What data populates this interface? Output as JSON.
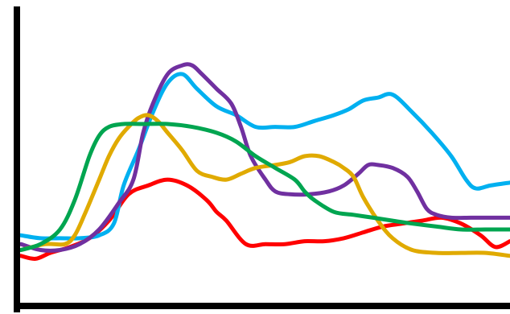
{
  "chart_data": {
    "type": "line",
    "title": "",
    "xlabel": "",
    "ylabel": "",
    "xlim": [
      0,
      100
    ],
    "ylim": [
      0,
      100
    ],
    "grid": false,
    "legend": "none",
    "axis_color": "#000000",
    "series": [
      {
        "color": "#ff0000",
        "x": [
          0,
          3,
          6,
          10,
          14,
          18,
          22,
          26,
          30,
          34,
          38,
          40,
          42,
          46,
          50,
          54,
          58,
          62,
          66,
          70,
          74,
          78,
          82,
          86,
          90,
          94,
          97,
          100
        ],
        "y": [
          16,
          15,
          17,
          19,
          22,
          28,
          37,
          40,
          42,
          40,
          35,
          31,
          28,
          20,
          20,
          20,
          21,
          21,
          22,
          24,
          26,
          27,
          28,
          29,
          27,
          23,
          19,
          21
        ]
      },
      {
        "color": "#00b0f0",
        "x": [
          0,
          4,
          8,
          12,
          16,
          19,
          21,
          24,
          27,
          30,
          33,
          36,
          40,
          44,
          48,
          52,
          56,
          60,
          64,
          67,
          70,
          73,
          76,
          80,
          84,
          88,
          91,
          93,
          96,
          100
        ],
        "y": [
          23,
          22,
          22,
          22,
          23,
          27,
          40,
          52,
          65,
          75,
          78,
          73,
          67,
          64,
          60,
          60,
          60,
          62,
          64,
          66,
          69,
          70,
          71,
          65,
          58,
          50,
          42,
          39,
          40,
          41
        ]
      },
      {
        "color": "#7030a0",
        "x": [
          0,
          4,
          8,
          12,
          16,
          20,
          23,
          25,
          27,
          30,
          33,
          35,
          37,
          40,
          43,
          45,
          47,
          50,
          52,
          55,
          59,
          63,
          66,
          69,
          71,
          73,
          76,
          79,
          81,
          83,
          85,
          88,
          92,
          96,
          100
        ],
        "y": [
          20,
          18,
          18,
          20,
          25,
          34,
          42,
          58,
          68,
          78,
          81,
          81,
          78,
          73,
          68,
          60,
          50,
          42,
          38,
          37,
          37,
          38,
          40,
          44,
          47,
          47,
          46,
          43,
          38,
          32,
          30,
          29,
          29,
          29,
          29
        ]
      },
      {
        "color": "#e0aa00",
        "x": [
          0,
          5,
          9,
          11,
          13,
          16,
          18,
          20,
          22,
          24,
          26,
          28,
          30,
          33,
          36,
          39,
          42,
          45,
          48,
          52,
          55,
          58,
          61,
          64,
          66,
          68,
          70,
          73,
          76,
          80,
          85,
          90,
          95,
          100
        ],
        "y": [
          18,
          20,
          20,
          23,
          30,
          42,
          50,
          56,
          60,
          63,
          64,
          62,
          58,
          52,
          45,
          43,
          42,
          44,
          46,
          47,
          48,
          50,
          50,
          48,
          46,
          43,
          36,
          28,
          22,
          18,
          17,
          17,
          17,
          16
        ]
      },
      {
        "color": "#00a550",
        "x": [
          0,
          4,
          8,
          11,
          14,
          16,
          18,
          21,
          25,
          30,
          35,
          40,
          44,
          48,
          52,
          56,
          58,
          60,
          64,
          68,
          72,
          76,
          80,
          85,
          90,
          95,
          100
        ],
        "y": [
          18,
          20,
          25,
          35,
          50,
          57,
          60,
          61,
          61,
          61,
          60,
          58,
          55,
          50,
          46,
          42,
          38,
          35,
          31,
          30,
          29,
          28,
          27,
          26,
          25,
          25,
          25
        ]
      }
    ]
  }
}
